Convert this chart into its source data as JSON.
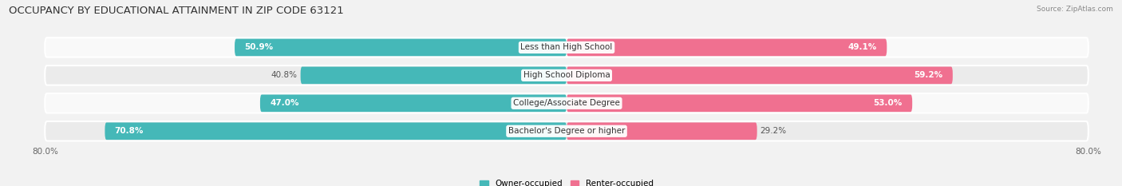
{
  "title": "OCCUPANCY BY EDUCATIONAL ATTAINMENT IN ZIP CODE 63121",
  "source": "Source: ZipAtlas.com",
  "categories": [
    "Less than High School",
    "High School Diploma",
    "College/Associate Degree",
    "Bachelor's Degree or higher"
  ],
  "owner_values": [
    50.9,
    40.8,
    47.0,
    70.8
  ],
  "renter_values": [
    49.1,
    59.2,
    53.0,
    29.2
  ],
  "owner_color": "#45b8b8",
  "renter_color": "#f07090",
  "renter_color_light": "#f8b8c8",
  "owner_label": "Owner-occupied",
  "renter_label": "Renter-occupied",
  "xlim_left": -80.0,
  "xlim_right": 80.0,
  "bar_height": 0.62,
  "title_fontsize": 9.5,
  "label_fontsize": 7.5,
  "category_fontsize": 7.5,
  "value_fontsize": 7.5,
  "background_color": "#f2f2f2",
  "row_bg_light": "#f9f9f9",
  "row_bg_dark": "#ebebeb"
}
